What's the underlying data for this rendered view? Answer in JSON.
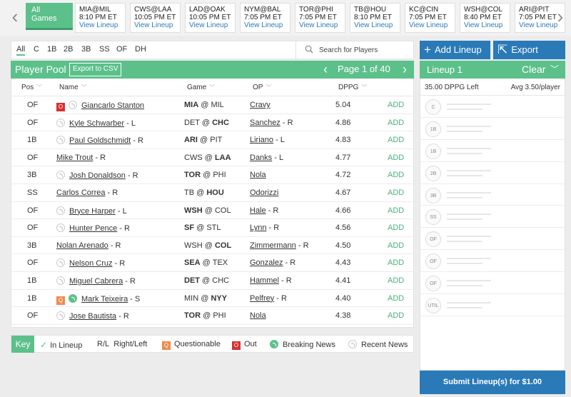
{
  "games_bar": {
    "all_games_label": "All Games",
    "games": [
      {
        "matchup": "MIA@MIL",
        "time": "8:10 PM ET",
        "link": "View Lineup"
      },
      {
        "matchup": "CWS@LAA",
        "time": "10:05 PM ET",
        "link": "View Lineup"
      },
      {
        "matchup": "LAD@OAK",
        "time": "10:05 PM ET",
        "link": "View Lineup"
      },
      {
        "matchup": "NYM@BAL",
        "time": "7:05 PM ET",
        "link": "View Lineup"
      },
      {
        "matchup": "TOR@PHI",
        "time": "7:05 PM ET",
        "link": "View Lineup"
      },
      {
        "matchup": "TB@HOU",
        "time": "8:10 PM ET",
        "link": "View Lineup"
      },
      {
        "matchup": "KC@CIN",
        "time": "7:05 PM ET",
        "link": "View Lineup"
      },
      {
        "matchup": "WSH@COL",
        "time": "8:40 PM ET",
        "link": "View Lineup"
      },
      {
        "matchup": "ARI@PIT",
        "time": "7:05 PM ET",
        "link": "View Lineup"
      }
    ]
  },
  "filters": {
    "positions": [
      "All",
      "C",
      "1B",
      "2B",
      "3B",
      "SS",
      "OF",
      "DH"
    ],
    "active": "All",
    "search_placeholder": "Search for Players"
  },
  "pool": {
    "title": "Player Pool",
    "export_label": "Export to CSV",
    "page_label": "Page 1 of 40",
    "columns": {
      "pos": "Pos",
      "name": "Name",
      "game": "Game",
      "op": "OP",
      "dppg": "DPPG"
    },
    "add_label": "ADD",
    "rows": [
      {
        "pos": "OF",
        "status": "O",
        "news": "none",
        "name": "Giancarlo Stanton",
        "hand": "",
        "away": "MIA",
        "home": "MIL",
        "bold": "away",
        "op": "Cravy",
        "op_hand": "",
        "dppg": "5.04"
      },
      {
        "pos": "OF",
        "status": "",
        "news": "none",
        "name": "Kyle Schwarber",
        "hand": " - L",
        "away": "DET",
        "home": "CHC",
        "bold": "home",
        "op": "Sanchez",
        "op_hand": " - R",
        "dppg": "4.86"
      },
      {
        "pos": "1B",
        "status": "",
        "news": "none",
        "name": "Paul Goldschmidt",
        "hand": " - R",
        "away": "ARI",
        "home": "PIT",
        "bold": "away",
        "op": "Liriano",
        "op_hand": " - L",
        "dppg": "4.83"
      },
      {
        "pos": "OF",
        "status": "",
        "news": "",
        "name": "Mike Trout",
        "hand": " - R",
        "away": "CWS",
        "home": "LAA",
        "bold": "home",
        "op": "Danks",
        "op_hand": " - L",
        "dppg": "4.77"
      },
      {
        "pos": "3B",
        "status": "",
        "news": "none",
        "name": "Josh Donaldson",
        "hand": " - R",
        "away": "TOR",
        "home": "PHI",
        "bold": "away",
        "op": "Nola",
        "op_hand": "",
        "dppg": "4.72"
      },
      {
        "pos": "SS",
        "status": "",
        "news": "",
        "name": "Carlos Correa",
        "hand": " - R",
        "away": "TB",
        "home": "HOU",
        "bold": "home",
        "op": "Odorizzi",
        "op_hand": "",
        "dppg": "4.67"
      },
      {
        "pos": "OF",
        "status": "",
        "news": "none",
        "name": "Bryce Harper",
        "hand": " - L",
        "away": "WSH",
        "home": "COL",
        "bold": "away",
        "op": "Hale",
        "op_hand": " - R",
        "dppg": "4.66"
      },
      {
        "pos": "OF",
        "status": "",
        "news": "none",
        "name": "Hunter Pence",
        "hand": " - R",
        "away": "SF",
        "home": "STL",
        "bold": "away",
        "op": "Lynn",
        "op_hand": " - R",
        "dppg": "4.56"
      },
      {
        "pos": "3B",
        "status": "",
        "news": "",
        "name": "Nolan Arenado",
        "hand": " - R",
        "away": "WSH",
        "home": "COL",
        "bold": "home",
        "op": "Zimmermann",
        "op_hand": " - R",
        "dppg": "4.50"
      },
      {
        "pos": "OF",
        "status": "",
        "news": "none",
        "name": "Nelson Cruz",
        "hand": " - R",
        "away": "SEA",
        "home": "TEX",
        "bold": "away",
        "op": "Gonzalez",
        "op_hand": " - R",
        "dppg": "4.43"
      },
      {
        "pos": "1B",
        "status": "",
        "news": "none",
        "name": "Miguel Cabrera",
        "hand": " - R",
        "away": "DET",
        "home": "CHC",
        "bold": "away",
        "op": "Hammel",
        "op_hand": " - R",
        "dppg": "4.41"
      },
      {
        "pos": "1B",
        "status": "Q",
        "news": "breaking",
        "name": "Mark Teixeira",
        "hand": " - S",
        "away": "MIN",
        "home": "NYY",
        "bold": "home",
        "op": "Pelfrey",
        "op_hand": " - R",
        "dppg": "4.40"
      },
      {
        "pos": "OF",
        "status": "",
        "news": "none",
        "name": "Jose Bautista",
        "hand": " - R",
        "away": "TOR",
        "home": "PHI",
        "bold": "away",
        "op": "Nola",
        "op_hand": "",
        "dppg": "4.38"
      }
    ]
  },
  "key": {
    "label": "Key",
    "in_lineup": "In Lineup",
    "rl_abbr": "R/L",
    "rl_text": "Right/Left",
    "q_badge": "Q",
    "questionable": "Questionable",
    "o_badge": "O",
    "out": "Out",
    "breaking_news": "Breaking News",
    "recent_news": "Recent News"
  },
  "lineup": {
    "add_label": "Add Lineup",
    "export_label": "Export",
    "title": "Lineup 1",
    "clear_label": "Clear",
    "dppg_left": "35.00 DPPG Left",
    "avg": "Avg 3.50/player",
    "slots": [
      "C",
      "1B",
      "1B",
      "2B",
      "3B",
      "SS",
      "OF",
      "OF",
      "OF",
      "UTIL"
    ],
    "submit_label": "Submit Lineup(s) for $1.00"
  },
  "colors": {
    "accent": "#5cc08a",
    "primary": "#2a7ab8",
    "out": "#d93030",
    "questionable": "#f08a4b"
  }
}
